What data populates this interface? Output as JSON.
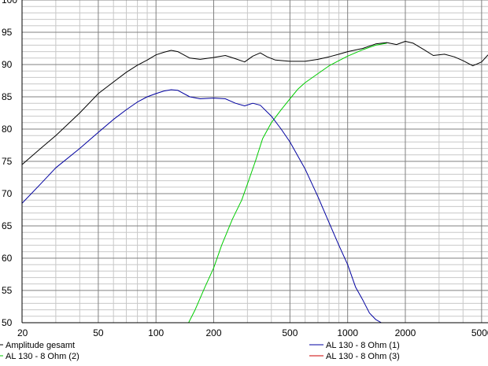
{
  "chart_data": {
    "type": "line",
    "title": "",
    "xlabel": "",
    "ylabel": "",
    "x_scale": "log",
    "xlim": [
      20,
      5400
    ],
    "ylim": [
      50,
      100
    ],
    "grid": true,
    "x_ticks": [
      20,
      50,
      100,
      200,
      500,
      1000,
      2000,
      5000
    ],
    "x_tick_labels": [
      "20",
      "50",
      "100",
      "200",
      "500",
      "1000",
      "2000",
      "5000"
    ],
    "y_ticks": [
      50,
      55,
      60,
      65,
      70,
      75,
      80,
      85,
      90,
      95,
      100
    ],
    "y_tick_labels": [
      "50",
      "55",
      "60",
      "65",
      "70",
      "75",
      "80",
      "85",
      "90",
      "95",
      "100"
    ],
    "legend_position": "bottom",
    "series": [
      {
        "name": "Amplitude gesamt",
        "color": "#000000",
        "x": [
          20,
          25,
          30,
          40,
          50,
          60,
          70,
          80,
          90,
          100,
          110,
          120,
          130,
          150,
          170,
          200,
          230,
          260,
          290,
          320,
          350,
          380,
          420,
          460,
          500,
          600,
          700,
          800,
          900,
          1000,
          1200,
          1400,
          1600,
          1800,
          2000,
          2200,
          2500,
          2800,
          3200,
          3600,
          4000,
          4500,
          5000,
          5400
        ],
        "y": [
          74.5,
          77,
          79,
          82.5,
          85.5,
          87.3,
          88.8,
          89.9,
          90.7,
          91.5,
          91.9,
          92.2,
          92.0,
          91.0,
          90.8,
          91.1,
          91.4,
          90.9,
          90.4,
          91.3,
          91.8,
          91.2,
          90.7,
          90.6,
          90.5,
          90.5,
          90.8,
          91.2,
          91.6,
          92.0,
          92.5,
          93.2,
          93.4,
          93.1,
          93.6,
          93.3,
          92.3,
          91.4,
          91.6,
          91.2,
          90.6,
          89.8,
          90.4,
          91.5
        ]
      },
      {
        "name": "AL 130 - 8 Ohm (1)",
        "color": "#0000a0",
        "x": [
          20,
          25,
          30,
          40,
          50,
          60,
          70,
          80,
          90,
          100,
          110,
          120,
          130,
          150,
          170,
          200,
          230,
          260,
          290,
          320,
          350,
          400,
          450,
          500,
          600,
          700,
          800,
          900,
          1000,
          1100,
          1200,
          1300,
          1400,
          1500,
          2000,
          3000,
          5400
        ],
        "y": [
          68.5,
          71.5,
          74,
          77,
          79.5,
          81.5,
          83,
          84.2,
          85,
          85.5,
          85.9,
          86.1,
          86.0,
          85.0,
          84.7,
          84.8,
          84.7,
          84.0,
          83.6,
          84.0,
          83.7,
          82.0,
          80.0,
          78.0,
          73.8,
          69.5,
          65.5,
          62.0,
          59.0,
          55.5,
          53.5,
          51.5,
          50.5,
          50.0,
          50.0,
          50.0,
          50.0
        ]
      },
      {
        "name": "AL 130 - 8 Ohm (2)",
        "color": "#00cc00",
        "x": [
          20,
          50,
          100,
          148,
          160,
          180,
          200,
          220,
          250,
          280,
          300,
          330,
          360,
          400,
          450,
          500,
          550,
          600,
          700,
          800,
          900,
          1000,
          1200,
          1400,
          1600
        ],
        "y": [
          50,
          50,
          50,
          50,
          52,
          55.5,
          58.5,
          62,
          66,
          69,
          71.5,
          75,
          78.5,
          81,
          83,
          84.7,
          86.2,
          87.2,
          88.6,
          89.8,
          90.6,
          91.3,
          92.3,
          93.0,
          93.3
        ]
      },
      {
        "name": "AL 130 - 8 Ohm (3)",
        "color": "#cc0000",
        "x": [],
        "y": []
      }
    ]
  }
}
